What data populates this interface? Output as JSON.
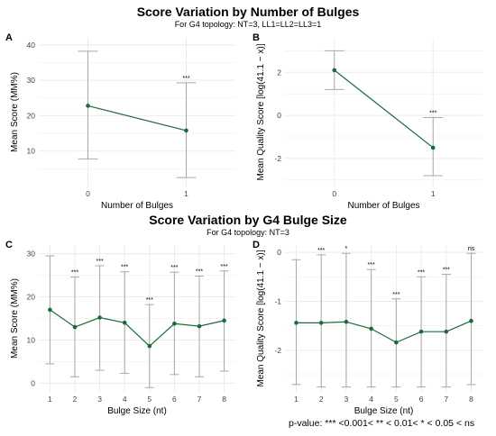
{
  "top_title": "Score Variation by Number of Bulges",
  "top_subtitle": "For G4 topology: NT=3, LL1=LL2=LL3=1",
  "bottom_title": "Score Variation by G4 Bulge Size",
  "bottom_subtitle": "For G4 topology: NT=3",
  "footnote": "p-value: *** <0.001< ** < 0.01< * < 0.05 < ns",
  "colors": {
    "line": "#1a6b3a",
    "errorbar": "#a8a8a8",
    "grid": "#ebebeb"
  },
  "chart_data": [
    {
      "panel": "A",
      "type": "line",
      "xlabel": "Number of Bulges",
      "ylabel": "Mean Score (MM%)",
      "categories": [
        "0",
        "1"
      ],
      "values": [
        22.8,
        15.8
      ],
      "err_low": [
        7.8,
        2.5
      ],
      "err_high": [
        38.2,
        29.3
      ],
      "significance": [
        "",
        "***"
      ],
      "yticks": [
        10,
        20,
        30,
        40
      ],
      "ylim": [
        0,
        42
      ],
      "grid": true
    },
    {
      "panel": "B",
      "type": "line",
      "xlabel": "Number of Bulges",
      "ylabel": "Mean Quality Score [log(41.1 − x)]",
      "categories": [
        "0",
        "1"
      ],
      "values": [
        2.1,
        -1.5
      ],
      "err_low": [
        1.2,
        -2.8
      ],
      "err_high": [
        3.0,
        -0.1
      ],
      "significance": [
        "",
        "***"
      ],
      "yticks": [
        -2,
        0,
        2
      ],
      "ylim": [
        -3.3,
        3.6
      ],
      "grid": true
    },
    {
      "panel": "C",
      "type": "line",
      "xlabel": "Bulge Size (nt)",
      "ylabel": "Mean Score (MM%)",
      "categories": [
        "1",
        "2",
        "3",
        "4",
        "5",
        "6",
        "7",
        "8"
      ],
      "values": [
        17.0,
        13.0,
        15.2,
        14.0,
        8.6,
        13.8,
        13.2,
        14.5
      ],
      "err_low": [
        4.5,
        1.5,
        3.0,
        2.3,
        -1.0,
        2.0,
        1.5,
        2.8
      ],
      "err_high": [
        29.5,
        24.6,
        27.2,
        25.8,
        18.2,
        25.7,
        24.8,
        26.0
      ],
      "significance": [
        "",
        "***",
        "***",
        "***",
        "***",
        "***",
        "***",
        "***"
      ],
      "yticks": [
        0,
        10,
        20,
        30
      ],
      "ylim": [
        -2,
        32
      ],
      "grid": true
    },
    {
      "panel": "D",
      "type": "line",
      "xlabel": "Bulge Size (nt)",
      "ylabel": "Mean Quality Score [log(41.1 − x)]",
      "categories": [
        "1",
        "2",
        "3",
        "4",
        "5",
        "6",
        "7",
        "8"
      ],
      "values": [
        -1.44,
        -1.44,
        -1.42,
        -1.56,
        -1.84,
        -1.62,
        -1.62,
        -1.4
      ],
      "err_low": [
        -2.7,
        -2.75,
        -2.75,
        -2.75,
        -2.75,
        -2.75,
        -2.75,
        -2.7
      ],
      "err_high": [
        -0.15,
        -0.05,
        -0.02,
        -0.35,
        -0.95,
        -0.5,
        -0.45,
        -0.02
      ],
      "significance": [
        "",
        "***",
        "*",
        "***",
        "***",
        "***",
        "***",
        "ns"
      ],
      "yticks": [
        -2,
        -1,
        0
      ],
      "ylim": [
        -2.85,
        0.15
      ],
      "grid": true
    }
  ]
}
